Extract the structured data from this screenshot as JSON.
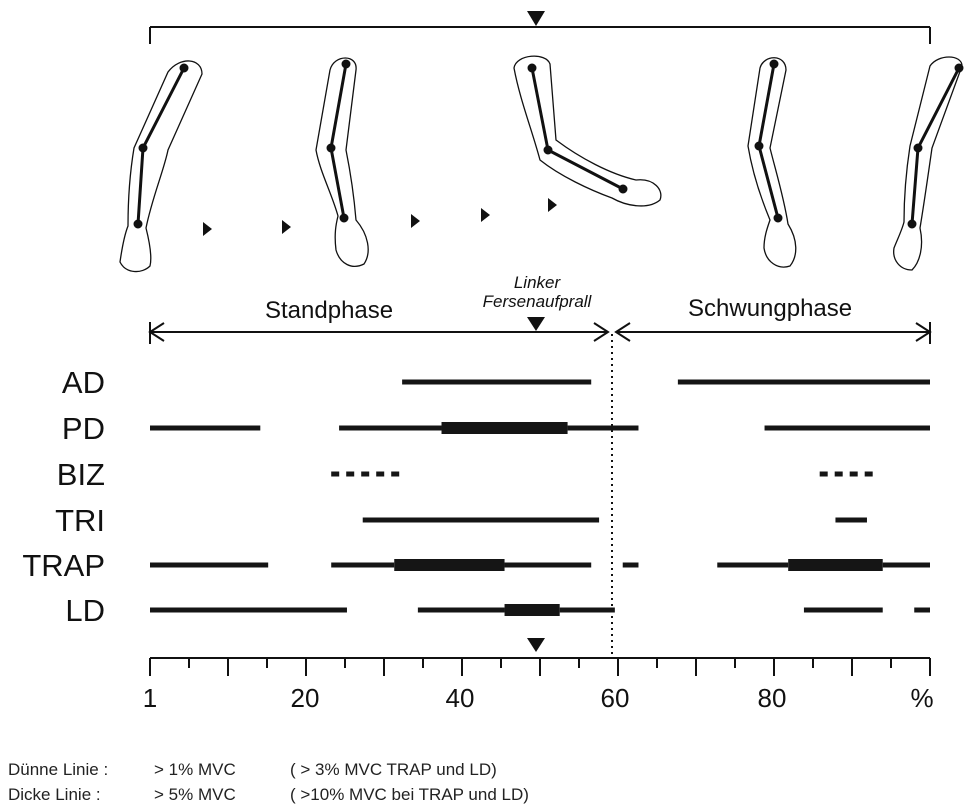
{
  "phase_labels": {
    "stance": "Standphase",
    "heelstrike_line1": "Linker",
    "heelstrike_line2": "Fersenaufprall",
    "swing": "Schwungphase"
  },
  "axis": {
    "tick_labels": [
      "1",
      "20",
      "40",
      "60",
      "80",
      "%"
    ]
  },
  "muscles": [
    {
      "label": "AD",
      "segments": [
        {
          "from": 33,
          "to": 57,
          "w": "thin"
        },
        {
          "from": 68,
          "to": 100,
          "w": "thin"
        }
      ]
    },
    {
      "label": "PD",
      "segments": [
        {
          "from": 1,
          "to": 15,
          "w": "thin"
        },
        {
          "from": 25,
          "to": 38,
          "w": "thin"
        },
        {
          "from": 38,
          "to": 54,
          "w": "thick"
        },
        {
          "from": 54,
          "to": 63,
          "w": "thin"
        },
        {
          "from": 79,
          "to": 100,
          "w": "thin"
        }
      ]
    },
    {
      "label": "BIZ",
      "segments": [
        {
          "from": 24,
          "to": 33,
          "w": "dotted"
        },
        {
          "from": 86,
          "to": 93,
          "w": "dotted"
        }
      ]
    },
    {
      "label": "TRI",
      "segments": [
        {
          "from": 28,
          "to": 58,
          "w": "thin"
        },
        {
          "from": 88,
          "to": 92,
          "w": "thin"
        }
      ]
    },
    {
      "label": "TRAP",
      "segments": [
        {
          "from": 1,
          "to": 16,
          "w": "thin"
        },
        {
          "from": 24,
          "to": 32,
          "w": "thin"
        },
        {
          "from": 32,
          "to": 46,
          "w": "thick"
        },
        {
          "from": 46,
          "to": 57,
          "w": "thin"
        },
        {
          "from": 61,
          "to": 63,
          "w": "thin"
        },
        {
          "from": 73,
          "to": 82,
          "w": "thin"
        },
        {
          "from": 82,
          "to": 94,
          "w": "thick"
        },
        {
          "from": 94,
          "to": 100,
          "w": "thin"
        }
      ]
    },
    {
      "label": "LD",
      "segments": [
        {
          "from": 1,
          "to": 26,
          "w": "thin"
        },
        {
          "from": 35,
          "to": 46,
          "w": "thin"
        },
        {
          "from": 46,
          "to": 53,
          "w": "thick"
        },
        {
          "from": 53,
          "to": 60,
          "w": "thin"
        },
        {
          "from": 84,
          "to": 94,
          "w": "thin"
        },
        {
          "from": 98,
          "to": 100,
          "w": "thin"
        }
      ]
    }
  ],
  "legend": {
    "thin_label": "Dünne Linie :",
    "thin_value": "> 1% MVC",
    "thin_note": "( > 3% MVC TRAP und LD)",
    "thick_label": "Dicke Linie :",
    "thick_value": "> 5% MVC",
    "thick_note": "( >10% MVC bei TRAP und LD)"
  }
}
